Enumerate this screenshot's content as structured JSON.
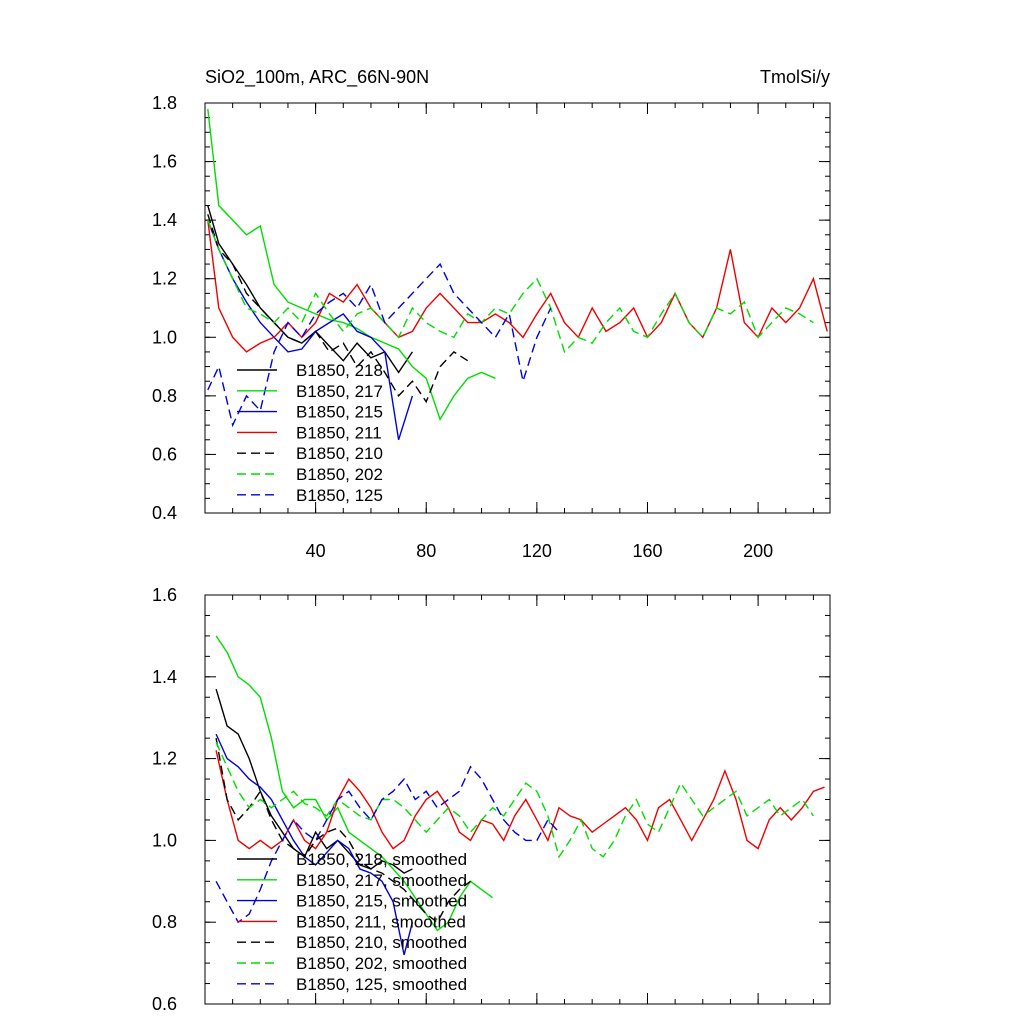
{
  "chart_data": [
    {
      "type": "line",
      "title_left": "SiO2_100m, ARC_66N-90N",
      "title_right": "TmolSi/y",
      "xlim": [
        0,
        226
      ],
      "ylim": [
        0.4,
        1.8
      ],
      "x_ticks": [
        40,
        80,
        120,
        160,
        200
      ],
      "y_ticks": [
        0.4,
        0.6,
        0.8,
        1.0,
        1.2,
        1.4,
        1.6,
        1.8
      ],
      "y_tick_labels": [
        "0.4",
        "0.6",
        "0.8",
        "1.0",
        "1.2",
        "1.4",
        "1.6",
        "1.8"
      ],
      "legend_position": "lower-left",
      "series": [
        {
          "name": "B1850, 218",
          "color": "#000000",
          "dash": "solid",
          "x": [
            1,
            5,
            10,
            15,
            20,
            25,
            30,
            35,
            40,
            45,
            50,
            55,
            60,
            65,
            70,
            75
          ],
          "y": [
            1.45,
            1.32,
            1.25,
            1.18,
            1.1,
            1.05,
            1.0,
            0.98,
            1.02,
            0.97,
            0.92,
            0.98,
            0.93,
            0.95,
            0.88,
            0.95
          ]
        },
        {
          "name": "B1850, 217",
          "color": "#00dd00",
          "dash": "solid",
          "x": [
            1,
            5,
            10,
            15,
            20,
            25,
            30,
            35,
            40,
            45,
            50,
            55,
            60,
            65,
            70,
            75,
            80,
            85,
            90,
            95,
            100,
            105
          ],
          "y": [
            1.78,
            1.45,
            1.4,
            1.35,
            1.38,
            1.18,
            1.12,
            1.1,
            1.08,
            1.06,
            1.05,
            1.03,
            1.0,
            0.98,
            0.96,
            0.9,
            0.86,
            0.72,
            0.8,
            0.86,
            0.88,
            0.86
          ]
        },
        {
          "name": "B1850, 215",
          "color": "#0000dd",
          "dash": "solid",
          "x": [
            1,
            5,
            10,
            15,
            20,
            25,
            30,
            35,
            40,
            45,
            50,
            55,
            60,
            65,
            70,
            75
          ],
          "y": [
            1.4,
            1.3,
            1.2,
            1.12,
            1.05,
            1.0,
            0.95,
            0.96,
            1.02,
            1.05,
            1.08,
            1.02,
            1.0,
            0.95,
            0.65,
            0.8
          ]
        },
        {
          "name": "B1850, 211",
          "color": "#ee0000",
          "dash": "solid",
          "x": [
            1,
            5,
            10,
            15,
            20,
            25,
            30,
            35,
            40,
            45,
            50,
            55,
            60,
            65,
            70,
            75,
            80,
            85,
            90,
            95,
            100,
            105,
            110,
            115,
            120,
            125,
            130,
            135,
            140,
            145,
            150,
            155,
            160,
            165,
            170,
            175,
            180,
            185,
            190,
            195,
            200,
            205,
            210,
            215,
            220,
            225
          ],
          "y": [
            1.4,
            1.1,
            1.0,
            0.95,
            0.98,
            1.0,
            1.05,
            1.0,
            1.05,
            1.15,
            1.12,
            1.18,
            1.1,
            1.05,
            1.0,
            1.02,
            1.1,
            1.15,
            1.1,
            1.05,
            1.05,
            1.08,
            1.05,
            1.0,
            1.08,
            1.15,
            1.05,
            1.0,
            1.1,
            1.02,
            1.05,
            1.1,
            1.0,
            1.05,
            1.15,
            1.05,
            1.0,
            1.1,
            1.3,
            1.05,
            1.0,
            1.1,
            1.05,
            1.1,
            1.2,
            1.02
          ]
        },
        {
          "name": "B1850, 210",
          "color": "#000000",
          "dash": "dashed",
          "x": [
            1,
            5,
            10,
            15,
            20,
            25,
            30,
            35,
            40,
            45,
            50,
            55,
            60,
            65,
            70,
            75,
            80,
            85,
            90,
            95
          ],
          "y": [
            1.42,
            1.3,
            1.25,
            1.15,
            1.1,
            1.05,
            1.0,
            0.98,
            1.02,
            0.95,
            0.98,
            0.9,
            0.95,
            0.88,
            0.8,
            0.85,
            0.78,
            0.9,
            0.95,
            0.92
          ]
        },
        {
          "name": "B1850, 202",
          "color": "#00dd00",
          "dash": "dashed",
          "x": [
            1,
            5,
            10,
            15,
            20,
            25,
            30,
            35,
            40,
            45,
            50,
            55,
            60,
            65,
            70,
            75,
            80,
            85,
            90,
            95,
            100,
            105,
            110,
            115,
            120,
            125,
            130,
            135,
            140,
            145,
            150,
            155,
            160,
            165,
            170,
            175,
            180,
            185,
            190,
            195,
            200,
            205,
            210,
            215,
            220
          ],
          "y": [
            1.4,
            1.3,
            1.2,
            1.1,
            1.08,
            1.05,
            1.1,
            1.05,
            1.15,
            1.08,
            1.02,
            1.08,
            1.1,
            1.05,
            1.0,
            1.1,
            1.05,
            1.02,
            1.0,
            1.08,
            1.05,
            1.1,
            1.08,
            1.15,
            1.2,
            1.1,
            0.95,
            1.0,
            0.98,
            1.05,
            1.1,
            1.02,
            1.0,
            1.08,
            1.15,
            1.05,
            1.0,
            1.1,
            1.08,
            1.12,
            1.0,
            1.05,
            1.1,
            1.08,
            1.05
          ]
        },
        {
          "name": "B1850, 125",
          "color": "#0000dd",
          "dash": "dashed",
          "x": [
            1,
            5,
            10,
            15,
            20,
            25,
            30,
            35,
            40,
            45,
            50,
            55,
            60,
            65,
            70,
            75,
            80,
            85,
            90,
            95,
            100,
            105,
            110,
            115,
            120,
            125
          ],
          "y": [
            0.82,
            0.9,
            0.7,
            0.8,
            0.75,
            0.95,
            1.05,
            1.0,
            1.08,
            1.12,
            1.15,
            1.1,
            1.18,
            1.05,
            1.1,
            1.15,
            1.2,
            1.25,
            1.15,
            1.1,
            1.05,
            1.0,
            1.08,
            0.85,
            1.0,
            1.1
          ]
        }
      ]
    },
    {
      "type": "line",
      "xlim": [
        0,
        226
      ],
      "ylim": [
        0.6,
        1.6
      ],
      "x_ticks": [
        40,
        80,
        120,
        160,
        200
      ],
      "y_ticks": [
        0.6,
        0.8,
        1.0,
        1.2,
        1.4,
        1.6
      ],
      "y_tick_labels": [
        "0.6",
        "0.8",
        "1.0",
        "1.2",
        "1.4",
        "1.6"
      ],
      "legend_position": "lower-left",
      "series": [
        {
          "name": "B1850, 218, smoothed",
          "color": "#000000",
          "dash": "solid",
          "x": [
            4,
            8,
            12,
            16,
            20,
            24,
            28,
            32,
            36,
            40,
            44,
            48,
            52,
            56,
            60,
            64,
            68,
            72,
            75
          ],
          "y": [
            1.37,
            1.28,
            1.26,
            1.2,
            1.12,
            1.06,
            1.02,
            0.98,
            0.96,
            1.02,
            0.98,
            1.0,
            0.97,
            0.94,
            0.93,
            0.95,
            0.94,
            0.92,
            0.93
          ]
        },
        {
          "name": "B1850, 217, smoothed",
          "color": "#00dd00",
          "dash": "solid",
          "x": [
            4,
            8,
            12,
            16,
            20,
            24,
            28,
            32,
            36,
            40,
            44,
            48,
            52,
            56,
            60,
            64,
            68,
            72,
            76,
            80,
            84,
            88,
            92,
            96,
            100,
            104
          ],
          "y": [
            1.5,
            1.46,
            1.4,
            1.38,
            1.35,
            1.25,
            1.12,
            1.08,
            1.1,
            1.1,
            1.05,
            1.08,
            1.02,
            1.0,
            0.98,
            0.96,
            0.93,
            0.9,
            0.86,
            0.82,
            0.78,
            0.8,
            0.86,
            0.9,
            0.88,
            0.86
          ]
        },
        {
          "name": "B1850, 215, smoothed",
          "color": "#0000dd",
          "dash": "solid",
          "x": [
            4,
            8,
            12,
            16,
            20,
            24,
            28,
            32,
            36,
            40,
            44,
            48,
            52,
            56,
            60,
            64,
            68,
            72,
            75
          ],
          "y": [
            1.26,
            1.2,
            1.18,
            1.15,
            1.13,
            1.1,
            1.05,
            1.0,
            0.96,
            0.94,
            0.97,
            1.0,
            0.98,
            0.93,
            0.92,
            0.9,
            0.85,
            0.72,
            0.8
          ]
        },
        {
          "name": "B1850, 211, smoothed",
          "color": "#ee0000",
          "dash": "solid",
          "x": [
            4,
            8,
            12,
            16,
            20,
            24,
            28,
            32,
            36,
            40,
            44,
            48,
            52,
            56,
            60,
            64,
            68,
            72,
            76,
            80,
            84,
            88,
            92,
            96,
            100,
            104,
            108,
            112,
            116,
            120,
            124,
            128,
            132,
            136,
            140,
            144,
            148,
            152,
            156,
            160,
            164,
            168,
            172,
            176,
            180,
            184,
            188,
            192,
            196,
            200,
            204,
            208,
            212,
            216,
            220,
            224
          ],
          "y": [
            1.22,
            1.1,
            1.0,
            0.98,
            1.0,
            0.98,
            1.0,
            1.05,
            1.0,
            0.98,
            1.02,
            1.1,
            1.15,
            1.12,
            1.08,
            1.02,
            0.98,
            1.0,
            1.06,
            1.1,
            1.12,
            1.08,
            1.02,
            1.0,
            1.05,
            1.04,
            1.0,
            1.06,
            1.1,
            1.05,
            1.0,
            1.08,
            1.06,
            1.05,
            1.02,
            1.04,
            1.06,
            1.08,
            1.05,
            1.0,
            1.08,
            1.1,
            1.05,
            1.0,
            1.05,
            1.1,
            1.17,
            1.1,
            1.0,
            0.98,
            1.05,
            1.08,
            1.05,
            1.08,
            1.12,
            1.13
          ]
        },
        {
          "name": "B1850, 210, smoothed",
          "color": "#000000",
          "dash": "dashed",
          "x": [
            4,
            8,
            12,
            16,
            20,
            24,
            28,
            32,
            36,
            40,
            44,
            48,
            52,
            56,
            60,
            64,
            68,
            72,
            76,
            80,
            84,
            88,
            92,
            96
          ],
          "y": [
            1.25,
            1.1,
            1.05,
            1.08,
            1.12,
            1.05,
            1.0,
            0.98,
            0.96,
            1.0,
            1.02,
            1.03,
            1.0,
            0.95,
            0.93,
            0.92,
            0.9,
            0.88,
            0.85,
            0.82,
            0.8,
            0.85,
            0.88,
            0.9
          ]
        },
        {
          "name": "B1850, 202, smoothed",
          "color": "#00dd00",
          "dash": "dashed",
          "x": [
            4,
            8,
            12,
            16,
            20,
            24,
            28,
            32,
            36,
            40,
            44,
            48,
            52,
            56,
            60,
            64,
            68,
            72,
            76,
            80,
            84,
            88,
            92,
            96,
            100,
            104,
            108,
            112,
            116,
            120,
            124,
            128,
            132,
            136,
            140,
            144,
            148,
            152,
            156,
            160,
            164,
            168,
            172,
            176,
            180,
            184,
            188,
            192,
            196,
            200,
            204,
            208,
            212,
            216,
            220
          ],
          "y": [
            1.24,
            1.18,
            1.12,
            1.08,
            1.1,
            1.08,
            1.1,
            1.12,
            1.09,
            1.08,
            1.06,
            1.1,
            1.08,
            1.06,
            1.05,
            1.1,
            1.1,
            1.08,
            1.05,
            1.02,
            1.05,
            1.08,
            1.06,
            1.02,
            1.05,
            1.08,
            1.06,
            1.1,
            1.14,
            1.12,
            1.06,
            0.96,
            1.0,
            1.05,
            0.98,
            0.96,
            1.0,
            1.06,
            1.1,
            1.04,
            1.02,
            1.08,
            1.14,
            1.1,
            1.06,
            1.08,
            1.1,
            1.12,
            1.06,
            1.08,
            1.1,
            1.06,
            1.08,
            1.1,
            1.06
          ]
        },
        {
          "name": "B1850, 125, smoothed",
          "color": "#0000dd",
          "dash": "dashed",
          "x": [
            4,
            8,
            12,
            16,
            20,
            24,
            28,
            32,
            36,
            40,
            44,
            48,
            52,
            56,
            60,
            64,
            68,
            72,
            76,
            80,
            84,
            88,
            92,
            96,
            100,
            104,
            108,
            112,
            116,
            120,
            124,
            128
          ],
          "y": [
            0.9,
            0.85,
            0.8,
            0.82,
            0.88,
            0.95,
            1.0,
            1.05,
            1.02,
            1.0,
            1.05,
            1.1,
            1.12,
            1.08,
            1.05,
            1.1,
            1.12,
            1.15,
            1.1,
            1.12,
            1.08,
            1.1,
            1.12,
            1.18,
            1.15,
            1.1,
            1.05,
            1.02,
            1.0,
            1.0,
            1.05,
            1.02
          ]
        }
      ]
    }
  ]
}
